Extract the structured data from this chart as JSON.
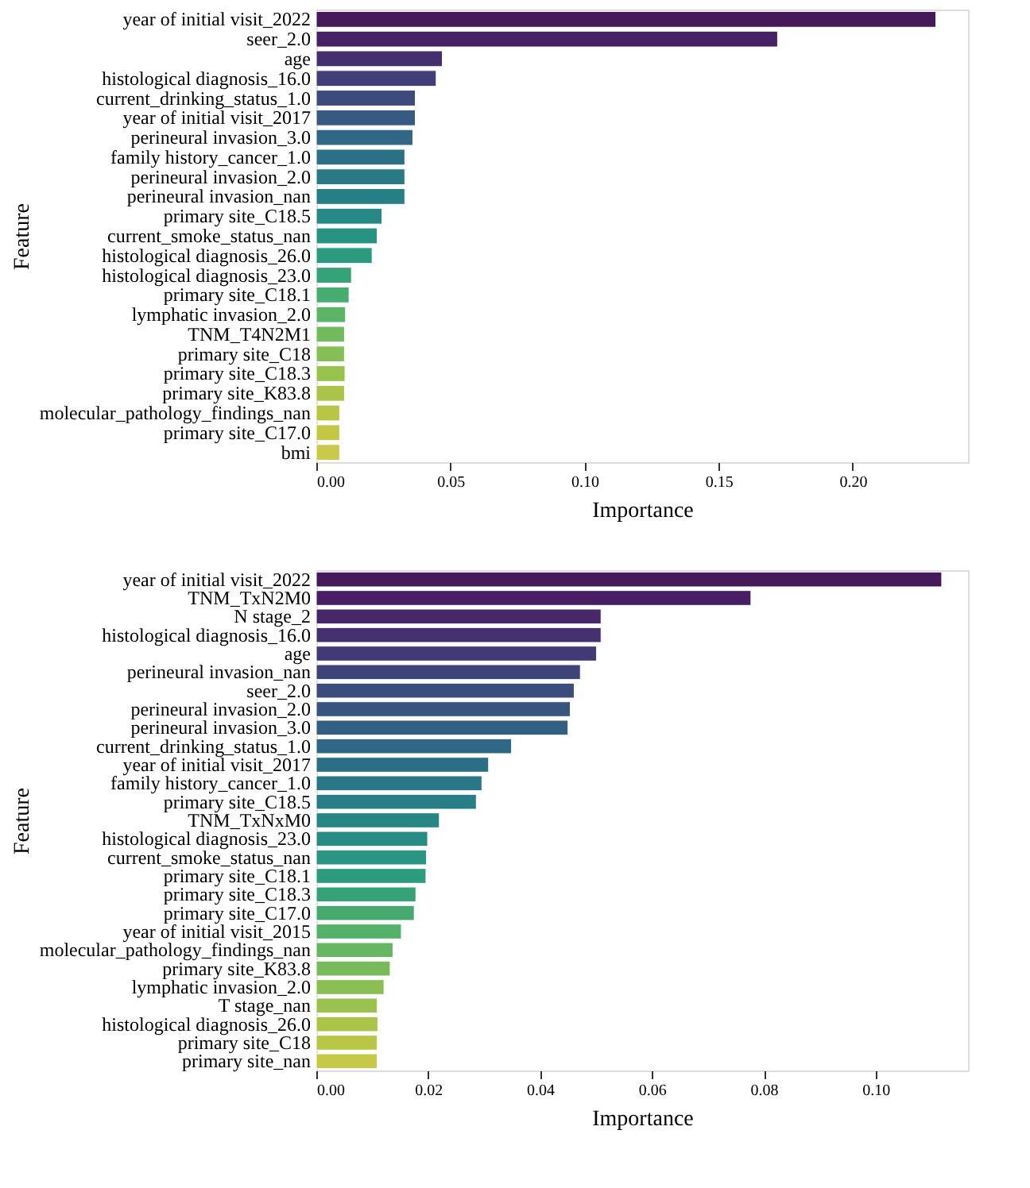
{
  "chart_data": [
    {
      "type": "bar",
      "orientation": "horizontal",
      "xlabel": "Importance",
      "ylabel": "Feature",
      "grid": false,
      "categories": [
        "year of initial visit_2022",
        "seer_2.0",
        "age",
        "histological diagnosis_16.0",
        "current_drinking_status_1.0",
        "year of initial visit_2017",
        "perineural invasion_3.0",
        "family history_cancer_1.0",
        "perineural invasion_2.0",
        "perineural invasion_nan",
        "primary site_C18.5",
        "current_smoke_status_nan",
        "histological diagnosis_26.0",
        "histological diagnosis_23.0",
        "primary site_C18.1",
        "lymphatic invasion_2.0",
        "TNM_T4N2M1",
        "primary site_C18",
        "primary site_C18.3",
        "primary site_K83.8",
        "molecular_pathology_findings_nan",
        "primary site_C17.0",
        "bmi"
      ],
      "values": [
        0.231,
        0.172,
        0.047,
        0.0447,
        0.0369,
        0.0369,
        0.036,
        0.033,
        0.033,
        0.033,
        0.0245,
        0.0227,
        0.0208,
        0.0131,
        0.0122,
        0.0109,
        0.0105,
        0.0105,
        0.0107,
        0.0105,
        0.0087,
        0.0087,
        0.0087
      ],
      "colors": [
        "#46195a",
        "#471f65",
        "#45306e",
        "#413e79",
        "#3b4c7c",
        "#365a82",
        "#316684",
        "#2d7085",
        "#2a7a86",
        "#277f86",
        "#278985",
        "#289283",
        "#2b9a7e",
        "#35a377",
        "#47ac6f",
        "#5cb466",
        "#72ba5d",
        "#86bf55",
        "#98c24e",
        "#a9c448",
        "#b8c644",
        "#c3c745",
        "#cbc94a"
      ],
      "xlim": [
        0,
        0.243
      ],
      "xticks": [
        {
          "value": 0,
          "label": "0.00"
        },
        0.05,
        {
          "value": 0.1,
          "label": "0.10"
        },
        0.15,
        {
          "value": 0.2,
          "label": "0.20"
        }
      ]
    },
    {
      "type": "bar",
      "orientation": "horizontal",
      "xlabel": "Importance",
      "ylabel": "Feature",
      "grid": false,
      "categories": [
        "year of initial visit_2022",
        "TNM_TxN2M0",
        "N stage_2",
        "histological diagnosis_16.0",
        "age",
        "perineural invasion_nan",
        "seer_2.0",
        "perineural invasion_2.0",
        "perineural invasion_3.0",
        "current_drinking_status_1.0",
        "year of initial visit_2017",
        "family history_cancer_1.0",
        "primary site_C18.5",
        "TNM_TxNxM0",
        "histological diagnosis_23.0",
        "current_smoke_status_nan",
        "primary site_C18.1",
        "primary site_C18.3",
        "primary site_C17.0",
        "year of initial visit_2015",
        "molecular_pathology_findings_nan",
        "primary site_K83.8",
        "lymphatic invasion_2.0",
        "T stage_nan",
        "histological diagnosis_26.0",
        "primary site_C18",
        "primary site_nan"
      ],
      "values": [
        0.1118,
        0.0777,
        0.0509,
        0.0509,
        0.0501,
        0.0472,
        0.0461,
        0.0454,
        0.045,
        0.0349,
        0.0308,
        0.0296,
        0.0286,
        0.022,
        0.0199,
        0.0197,
        0.0196,
        0.0178,
        0.0175,
        0.0152,
        0.0137,
        0.0132,
        0.0121,
        0.0109,
        0.011,
        0.0109,
        0.0109
      ],
      "colors": [
        "#46195a",
        "#471d63",
        "#472769",
        "#453070",
        "#423a76",
        "#3e447a",
        "#3a4d7d",
        "#365680",
        "#325f82",
        "#2f6784",
        "#2c6f85",
        "#2a7786",
        "#287e86",
        "#278585",
        "#278d84",
        "#299482",
        "#2d9b7e",
        "#36a277",
        "#45a970",
        "#55b069",
        "#66b662",
        "#79bb5b",
        "#8abf54",
        "#9bc24e",
        "#aac448",
        "#b9c645",
        "#c6c847"
      ],
      "xlim": [
        0,
        0.1165
      ],
      "xticks": [
        {
          "value": 0,
          "label": "0.00"
        },
        0.02,
        0.04,
        0.06,
        0.08,
        {
          "value": 0.1,
          "label": "0.10"
        }
      ]
    }
  ]
}
